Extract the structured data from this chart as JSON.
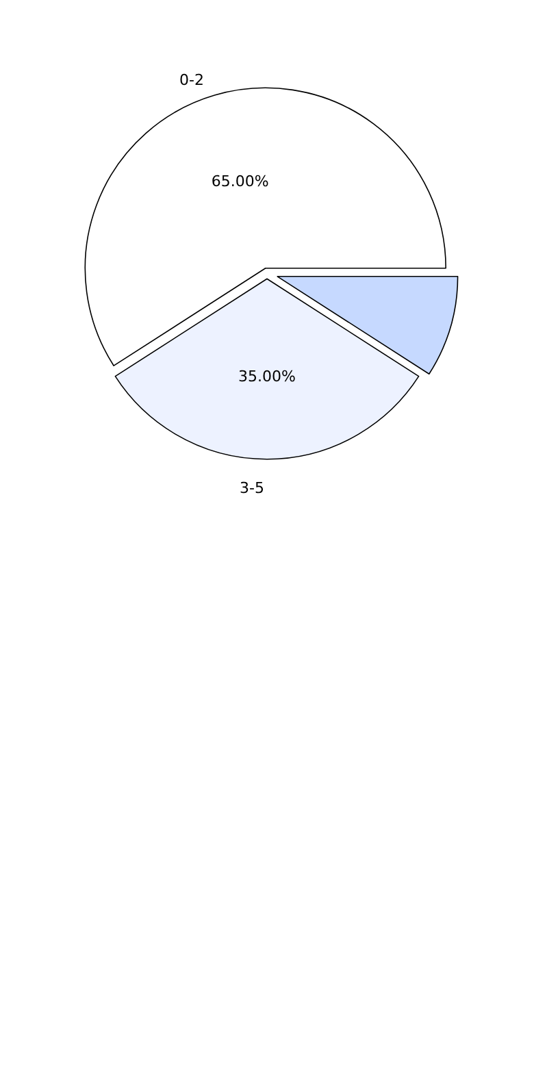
{
  "chart_data": {
    "type": "pie",
    "categories": [
      "0-2",
      "3-5",
      null
    ],
    "values": [
      65,
      35,
      10
    ],
    "value_labels": [
      "65.00%",
      "35.00%",
      null
    ],
    "colors": [
      "#ffffff",
      "#edf2ff",
      "#c6d9ff"
    ],
    "legend": false
  }
}
